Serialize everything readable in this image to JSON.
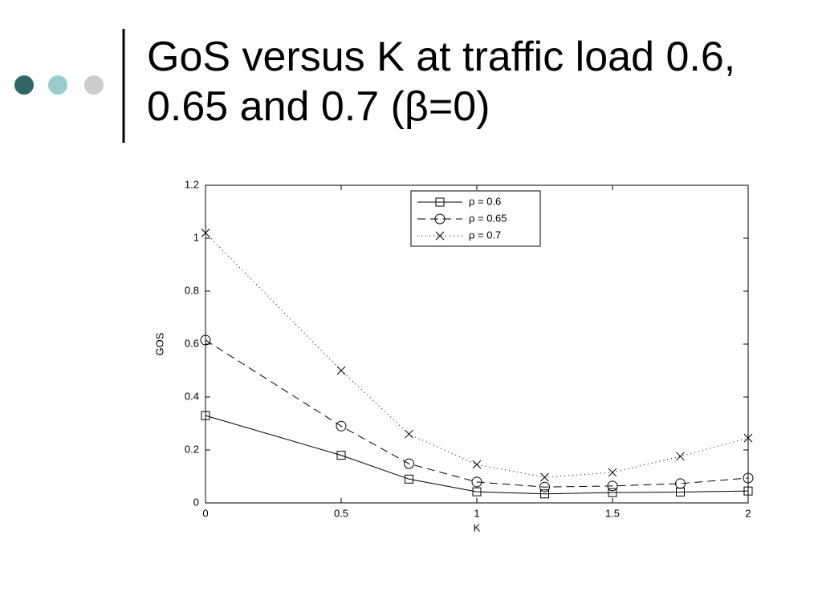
{
  "chart_data": {
    "type": "line",
    "title": "GoS versus K at traffic load 0.6, 0.65 and 0.7 (β=0)",
    "x_label": "K",
    "y_label": "GOS",
    "x": [
      0,
      0.5,
      0.75,
      1,
      1.25,
      1.5,
      1.75,
      2
    ],
    "series": [
      {
        "name": "ρ = 0.6",
        "color": "#000000",
        "marker": "square",
        "dash": "solid",
        "values": [
          0.33,
          0.18,
          0.09,
          0.042,
          0.034,
          0.039,
          0.041,
          0.045
        ]
      },
      {
        "name": "ρ = 0.65",
        "color": "#000000",
        "marker": "circle",
        "dash": "dashed",
        "values": [
          0.615,
          0.29,
          0.148,
          0.079,
          0.06,
          0.064,
          0.073,
          0.094
        ]
      },
      {
        "name": "ρ = 0.7",
        "color": "#000000",
        "marker": "x",
        "dash": "dotted",
        "values": [
          1.02,
          0.5,
          0.26,
          0.145,
          0.097,
          0.115,
          0.176,
          0.245
        ]
      }
    ],
    "xlim": [
      0,
      2
    ],
    "xticks": [
      0,
      0.5,
      1,
      1.5,
      2
    ],
    "ylim": [
      0,
      1.2
    ],
    "yticks": [
      0,
      0.2,
      0.4,
      0.6,
      0.8,
      1,
      1.2
    ],
    "grid": false,
    "legend": "top-center"
  }
}
